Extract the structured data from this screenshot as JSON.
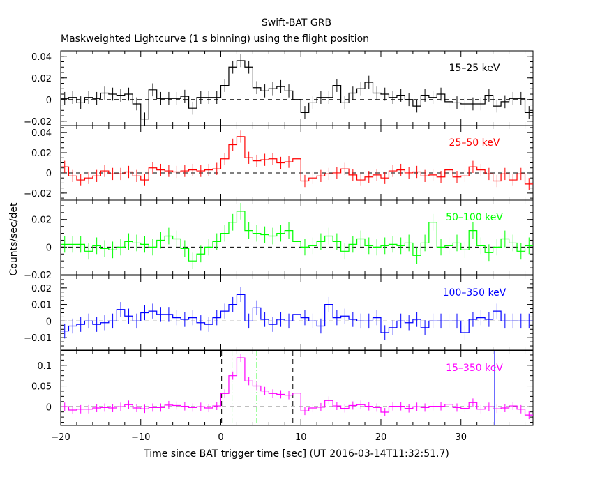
{
  "header": {
    "title": "Swift-BAT GRB",
    "subtitle": "Maskweighted Lightcurve (1 s binning) using the flight position"
  },
  "axes": {
    "xlabel": "Time since BAT trigger time [sec] (UT 2016-03-14T11:32:51.7)",
    "ylabel": "Counts/sec/det"
  },
  "chart_data": {
    "type": "line",
    "step": true,
    "xlim": [
      -20,
      39
    ],
    "xticks": [
      -20,
      -10,
      0,
      10,
      20,
      30
    ],
    "xtick_labels": [
      "−20",
      "−10",
      "0",
      "10",
      "20",
      "30"
    ],
    "panels": [
      {
        "band": "15–25 keV",
        "color": "#000000",
        "ylim": [
          -0.024,
          0.045
        ],
        "yticks": [
          -0.02,
          0,
          0.02,
          0.04
        ],
        "ytick_labels": [
          "−0.02",
          "0",
          "0.02",
          "0.04"
        ],
        "x": [
          -20,
          -19,
          -18,
          -17,
          -16,
          -15,
          -14,
          -13,
          -12,
          -11,
          -10,
          -9,
          -8,
          -7,
          -6,
          -5,
          -4,
          -3,
          -2,
          -1,
          0,
          1,
          2,
          3,
          4,
          5,
          6,
          7,
          8,
          9,
          10,
          11,
          12,
          13,
          14,
          15,
          16,
          17,
          18,
          19,
          20,
          21,
          22,
          23,
          24,
          25,
          26,
          27,
          28,
          29,
          30,
          31,
          32,
          33,
          34,
          35,
          36,
          37,
          38
        ],
        "values": [
          0.001,
          0.002,
          -0.003,
          0.002,
          0.001,
          0.006,
          0.005,
          0.004,
          0.005,
          -0.004,
          -0.018,
          0.009,
          0.001,
          0.001,
          0.001,
          0.003,
          -0.008,
          0.002,
          0.002,
          0.002,
          0.013,
          0.03,
          0.036,
          0.03,
          0.011,
          0.008,
          0.01,
          0.012,
          0.008,
          0.0,
          -0.012,
          -0.003,
          0.002,
          0.002,
          0.013,
          -0.003,
          0.006,
          0.01,
          0.016,
          0.006,
          0.005,
          0.002,
          0.004,
          0.0,
          -0.006,
          0.004,
          0.002,
          0.005,
          -0.002,
          -0.003,
          -0.004,
          -0.004,
          -0.004,
          0.004,
          -0.006,
          -0.002,
          0.001,
          0.001,
          -0.012
        ],
        "errors": [
          0.006,
          0.006,
          0.006,
          0.006,
          0.006,
          0.006,
          0.006,
          0.006,
          0.006,
          0.006,
          0.006,
          0.006,
          0.006,
          0.006,
          0.006,
          0.006,
          0.006,
          0.006,
          0.006,
          0.006,
          0.006,
          0.006,
          0.006,
          0.006,
          0.006,
          0.006,
          0.006,
          0.006,
          0.006,
          0.006,
          0.006,
          0.006,
          0.006,
          0.006,
          0.006,
          0.006,
          0.006,
          0.006,
          0.006,
          0.006,
          0.006,
          0.006,
          0.006,
          0.006,
          0.006,
          0.006,
          0.006,
          0.006,
          0.006,
          0.006,
          0.006,
          0.006,
          0.006,
          0.006,
          0.006,
          0.006,
          0.006,
          0.006,
          0.006
        ]
      },
      {
        "band": "25–50 keV",
        "color": "#ff0000",
        "ylim": [
          -0.027,
          0.047
        ],
        "yticks": [
          -0.02,
          0,
          0.02,
          0.04
        ],
        "ytick_labels": [
          "−0.02",
          "0",
          "0.02",
          "0.04"
        ],
        "x": [
          -20,
          -19,
          -18,
          -17,
          -16,
          -15,
          -14,
          -13,
          -12,
          -11,
          -10,
          -9,
          -8,
          -7,
          -6,
          -5,
          -4,
          -3,
          -2,
          -1,
          0,
          1,
          2,
          3,
          4,
          5,
          6,
          7,
          8,
          9,
          10,
          11,
          12,
          13,
          14,
          15,
          16,
          17,
          18,
          19,
          20,
          21,
          22,
          23,
          24,
          25,
          26,
          27,
          28,
          29,
          30,
          31,
          32,
          33,
          34,
          35,
          36,
          37,
          38
        ],
        "values": [
          0.006,
          -0.003,
          -0.007,
          -0.005,
          -0.003,
          0.002,
          -0.001,
          -0.001,
          0.001,
          -0.003,
          -0.007,
          0.005,
          0.003,
          0.002,
          0.001,
          0.002,
          0.003,
          0.002,
          0.003,
          0.004,
          0.014,
          0.028,
          0.036,
          0.015,
          0.012,
          0.013,
          0.014,
          0.01,
          0.011,
          0.014,
          -0.008,
          -0.005,
          -0.003,
          -0.001,
          0.0,
          0.004,
          -0.002,
          -0.007,
          -0.004,
          -0.002,
          -0.005,
          0.002,
          0.003,
          0.0,
          0.001,
          -0.003,
          -0.002,
          -0.004,
          0.003,
          -0.004,
          -0.003,
          0.006,
          0.003,
          -0.001,
          -0.008,
          -0.001,
          -0.007,
          -0.001,
          -0.011
        ],
        "errors": [
          0.006,
          0.006,
          0.006,
          0.006,
          0.006,
          0.006,
          0.006,
          0.006,
          0.006,
          0.006,
          0.006,
          0.006,
          0.006,
          0.006,
          0.006,
          0.006,
          0.006,
          0.006,
          0.006,
          0.006,
          0.006,
          0.006,
          0.006,
          0.006,
          0.006,
          0.006,
          0.006,
          0.006,
          0.006,
          0.006,
          0.006,
          0.006,
          0.006,
          0.006,
          0.006,
          0.006,
          0.006,
          0.006,
          0.006,
          0.006,
          0.006,
          0.006,
          0.006,
          0.006,
          0.006,
          0.006,
          0.006,
          0.006,
          0.006,
          0.006,
          0.006,
          0.006,
          0.006,
          0.006,
          0.006,
          0.006,
          0.006,
          0.006,
          0.006
        ]
      },
      {
        "band": "50–100 keV",
        "color": "#00ff00",
        "ylim": [
          -0.02,
          0.034
        ],
        "yticks": [
          -0.02,
          0,
          0.02
        ],
        "ytick_labels": [
          "−0.02",
          "0",
          "0.02"
        ],
        "x": [
          -20,
          -19,
          -18,
          -17,
          -16,
          -15,
          -14,
          -13,
          -12,
          -11,
          -10,
          -9,
          -8,
          -7,
          -6,
          -5,
          -4,
          -3,
          -2,
          -1,
          0,
          1,
          2,
          3,
          4,
          5,
          6,
          7,
          8,
          9,
          10,
          11,
          12,
          13,
          14,
          15,
          16,
          17,
          18,
          19,
          20,
          21,
          22,
          23,
          24,
          25,
          26,
          27,
          28,
          29,
          30,
          31,
          32,
          33,
          34,
          35,
          36,
          37,
          38
        ],
        "values": [
          0.002,
          0.002,
          0.002,
          -0.003,
          0.001,
          -0.001,
          -0.002,
          0.0,
          0.004,
          0.003,
          0.002,
          0.0,
          0.005,
          0.008,
          0.006,
          -0.001,
          -0.01,
          -0.005,
          0.0,
          0.004,
          0.01,
          0.018,
          0.026,
          0.012,
          0.01,
          0.009,
          0.008,
          0.01,
          0.012,
          0.004,
          0.0,
          0.001,
          0.004,
          0.008,
          0.004,
          -0.003,
          0.002,
          0.006,
          0.001,
          0.0,
          0.001,
          0.002,
          0.001,
          0.003,
          -0.006,
          0.003,
          0.018,
          0.0,
          0.001,
          0.003,
          -0.002,
          0.012,
          0.001,
          -0.004,
          0.0,
          0.006,
          0.003,
          -0.003,
          0.001
        ],
        "errors": [
          0.006,
          0.006,
          0.006,
          0.006,
          0.006,
          0.006,
          0.006,
          0.006,
          0.006,
          0.006,
          0.006,
          0.006,
          0.006,
          0.006,
          0.006,
          0.006,
          0.006,
          0.006,
          0.006,
          0.006,
          0.006,
          0.006,
          0.006,
          0.006,
          0.006,
          0.006,
          0.006,
          0.006,
          0.006,
          0.006,
          0.006,
          0.006,
          0.006,
          0.006,
          0.006,
          0.006,
          0.006,
          0.006,
          0.006,
          0.006,
          0.006,
          0.006,
          0.006,
          0.006,
          0.006,
          0.006,
          0.006,
          0.006,
          0.006,
          0.006,
          0.006,
          0.006,
          0.006,
          0.006,
          0.006,
          0.006,
          0.006,
          0.006,
          0.006
        ]
      },
      {
        "band": "100–350 keV",
        "color": "#0000ff",
        "ylim": [
          -0.0175,
          0.0275
        ],
        "yticks": [
          -0.01,
          0,
          0.01,
          0.02
        ],
        "ytick_labels": [
          "−0.01",
          "0",
          "0.01",
          "0.02"
        ],
        "x": [
          -20,
          -19,
          -18,
          -17,
          -16,
          -15,
          -14,
          -13,
          -12,
          -11,
          -10,
          -9,
          -8,
          -7,
          -6,
          -5,
          -4,
          -3,
          -2,
          -1,
          0,
          1,
          2,
          3,
          4,
          5,
          6,
          7,
          8,
          9,
          10,
          11,
          12,
          13,
          14,
          15,
          16,
          17,
          18,
          19,
          20,
          21,
          22,
          23,
          24,
          25,
          26,
          27,
          28,
          29,
          30,
          31,
          32,
          33,
          34,
          35,
          36,
          37,
          38
        ],
        "values": [
          -0.006,
          -0.003,
          -0.002,
          0.0,
          -0.002,
          -0.001,
          0.0,
          0.007,
          0.003,
          0.0,
          0.005,
          0.006,
          0.004,
          0.004,
          0.002,
          0.001,
          0.002,
          -0.001,
          -0.002,
          0.002,
          0.006,
          0.01,
          0.016,
          0.0,
          0.008,
          0.001,
          -0.002,
          0.001,
          0.0,
          0.004,
          0.002,
          0.0,
          -0.003,
          0.01,
          0.002,
          0.003,
          0.001,
          0.0,
          0.0,
          0.002,
          -0.007,
          -0.004,
          0.0,
          -0.001,
          0.001,
          -0.004,
          0.0,
          0.0,
          0.0,
          0.0,
          -0.007,
          0.001,
          0.002,
          0.001,
          0.006,
          0.0,
          0.0,
          0.0,
          0.0
        ],
        "errors": [
          0.0045,
          0.0045,
          0.0045,
          0.0045,
          0.0045,
          0.0045,
          0.0045,
          0.0045,
          0.0045,
          0.0045,
          0.0045,
          0.0045,
          0.0045,
          0.0045,
          0.0045,
          0.0045,
          0.0045,
          0.0045,
          0.0045,
          0.0045,
          0.0045,
          0.0045,
          0.0045,
          0.0045,
          0.0045,
          0.0045,
          0.0045,
          0.0045,
          0.0045,
          0.0045,
          0.0045,
          0.0045,
          0.0045,
          0.0045,
          0.0045,
          0.0045,
          0.0045,
          0.0045,
          0.0045,
          0.0045,
          0.0045,
          0.0045,
          0.0045,
          0.0045,
          0.0045,
          0.0045,
          0.0045,
          0.0045,
          0.0045,
          0.0045,
          0.0045,
          0.0045,
          0.0045,
          0.0045,
          0.0045,
          0.0045,
          0.0045,
          0.0045,
          0.0045
        ]
      },
      {
        "band": "15–350 keV",
        "color": "#ff00ff",
        "ylim": [
          -0.045,
          0.135
        ],
        "yticks": [
          0,
          0.05,
          0.1
        ],
        "ytick_labels": [
          "0",
          "0.05",
          "0.1"
        ],
        "x": [
          -20,
          -19,
          -18,
          -17,
          -16,
          -15,
          -14,
          -13,
          -12,
          -11,
          -10,
          -9,
          -8,
          -7,
          -6,
          -5,
          -4,
          -3,
          -2,
          -1,
          0,
          1,
          2,
          3,
          4,
          5,
          6,
          7,
          8,
          9,
          10,
          11,
          12,
          13,
          14,
          15,
          16,
          17,
          18,
          19,
          20,
          21,
          22,
          23,
          24,
          25,
          26,
          27,
          28,
          29,
          30,
          31,
          32,
          33,
          34,
          35,
          36,
          37,
          38
        ],
        "values": [
          0.0,
          -0.008,
          -0.006,
          -0.006,
          -0.003,
          -0.002,
          -0.003,
          0.0,
          0.005,
          -0.003,
          -0.005,
          -0.002,
          -0.002,
          0.004,
          0.003,
          0.001,
          -0.002,
          0.0,
          -0.003,
          0.002,
          0.032,
          0.075,
          0.118,
          0.062,
          0.05,
          0.038,
          0.032,
          0.03,
          0.028,
          0.033,
          -0.01,
          -0.003,
          -0.001,
          0.015,
          0.002,
          -0.004,
          0.003,
          0.005,
          0.001,
          -0.002,
          -0.013,
          0.001,
          0.001,
          -0.004,
          0.0,
          -0.002,
          0.001,
          0.001,
          0.006,
          -0.002,
          -0.004,
          0.01,
          -0.006,
          0.0,
          -0.005,
          -0.003,
          0.002,
          -0.006,
          -0.02
        ],
        "errors": [
          0.01,
          0.01,
          0.01,
          0.01,
          0.01,
          0.01,
          0.01,
          0.01,
          0.01,
          0.01,
          0.01,
          0.01,
          0.01,
          0.01,
          0.01,
          0.01,
          0.01,
          0.01,
          0.01,
          0.01,
          0.01,
          0.01,
          0.01,
          0.01,
          0.01,
          0.01,
          0.01,
          0.01,
          0.01,
          0.01,
          0.01,
          0.01,
          0.01,
          0.01,
          0.01,
          0.01,
          0.01,
          0.01,
          0.01,
          0.01,
          0.01,
          0.01,
          0.01,
          0.01,
          0.01,
          0.01,
          0.01,
          0.01,
          0.01,
          0.01,
          0.01,
          0.01,
          0.01,
          0.01,
          0.01,
          0.01,
          0.01,
          0.01,
          0.01
        ],
        "markers": [
          {
            "x": 0.1,
            "color": "#000000",
            "style": "dashed"
          },
          {
            "x": 9.0,
            "color": "#000000",
            "style": "dashed"
          },
          {
            "x": 1.4,
            "color": "#00ff00",
            "style": "dashdot"
          },
          {
            "x": 4.5,
            "color": "#00ff00",
            "style": "dashdot"
          },
          {
            "x": 34.2,
            "color": "#0000ff",
            "style": "solid"
          }
        ]
      }
    ]
  }
}
